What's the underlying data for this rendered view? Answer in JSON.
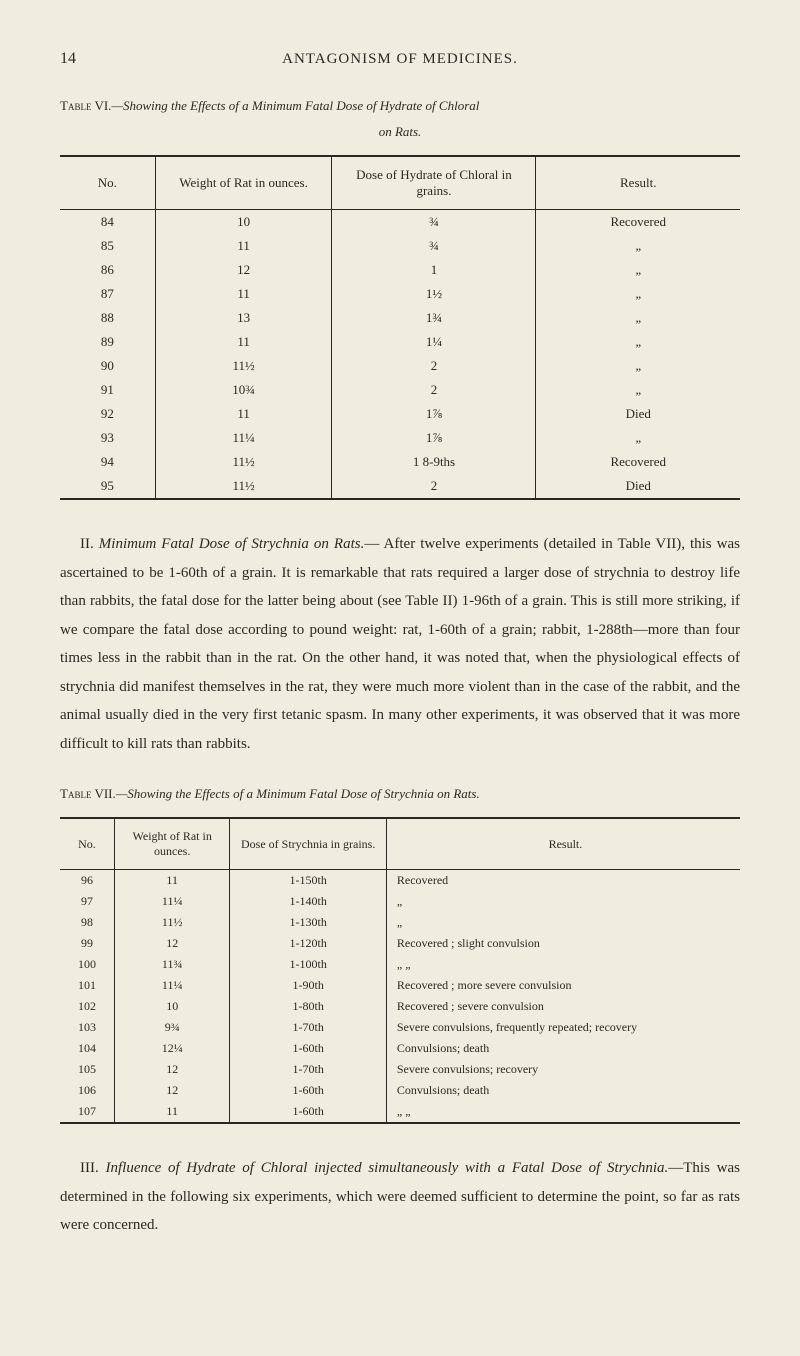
{
  "page_number": "14",
  "page_title": "ANTAGONISM OF MEDICINES.",
  "table6": {
    "caption_prefix": "Table VI.",
    "caption_text": "—Showing the Effects of a Minimum Fatal Dose of Hydrate of Chloral",
    "caption_line2": "on Rats.",
    "columns": [
      "No.",
      "Weight of Rat in ounces.",
      "Dose of Hydrate of Chloral in grains.",
      "Result."
    ],
    "rows": [
      [
        "84",
        "10",
        "¾",
        "Recovered"
      ],
      [
        "85",
        "11",
        "¾",
        "„"
      ],
      [
        "86",
        "12",
        "1",
        "„"
      ],
      [
        "87",
        "11",
        "1½",
        "„"
      ],
      [
        "88",
        "13",
        "1¾",
        "„"
      ],
      [
        "89",
        "11",
        "1¼",
        "„"
      ],
      [
        "90",
        "11½",
        "2",
        "„"
      ],
      [
        "91",
        "10¾",
        "2",
        "„"
      ],
      [
        "92",
        "11",
        "1⅞",
        "Died"
      ],
      [
        "93",
        "11¼",
        "1⅞",
        "„"
      ],
      [
        "94",
        "11½",
        "1 8-9ths",
        "Recovered"
      ],
      [
        "95",
        "11½",
        "2",
        "Died"
      ]
    ]
  },
  "para1": {
    "roman": "II.",
    "italic": "Minimum Fatal Dose of Strychnia on Rats.",
    "text": "— After twelve experiments (detailed in Table VII), this was ascertained to be 1-60th of a grain. It is remarkable that rats required a larger dose of strychnia to destroy life than rabbits, the fatal dose for the latter being about (see Table II) 1-96th of a grain. This is still more striking, if we compare the fatal dose according to pound weight: rat, 1-60th of a grain; rabbit, 1-288th—more than four times less in the rabbit than in the rat. On the other hand, it was noted that, when the physiological effects of strychnia did manifest themselves in the rat, they were much more violent than in the case of the rabbit, and the animal usually died in the very first tetanic spasm. In many other experiments, it was observed that it was more difficult to kill rats than rabbits."
  },
  "table7": {
    "caption_prefix": "Table VII.",
    "caption_text": "—Showing the Effects of a Minimum Fatal Dose of Strychnia on Rats.",
    "columns": [
      "No.",
      "Weight of Rat in ounces.",
      "Dose of Strychnia in grains.",
      "Result."
    ],
    "rows": [
      [
        "96",
        "11",
        "1-150th",
        "Recovered"
      ],
      [
        "97",
        "11¼",
        "1-140th",
        "„"
      ],
      [
        "98",
        "11½",
        "1-130th",
        "„"
      ],
      [
        "99",
        "12",
        "1-120th",
        "Recovered ; slight convulsion"
      ],
      [
        "100",
        "11¾",
        "1-100th",
        "„              „"
      ],
      [
        "101",
        "11¼",
        "1-90th",
        "Recovered ; more severe convulsion"
      ],
      [
        "102",
        "10",
        "1-80th",
        "Recovered ; severe convulsion"
      ],
      [
        "103",
        "9¾",
        "1-70th",
        "Severe convulsions, frequently repeated; recovery"
      ],
      [
        "104",
        "12¼",
        "1-60th",
        "Convulsions; death"
      ],
      [
        "105",
        "12",
        "1-70th",
        "Severe convulsions; recovery"
      ],
      [
        "106",
        "12",
        "1-60th",
        "Convulsions; death"
      ],
      [
        "107",
        "11",
        "1-60th",
        "„              „"
      ]
    ]
  },
  "para2": {
    "roman": "III.",
    "italic": "Influence of Hydrate of Chloral injected simultaneously with a Fatal Dose of Strychnia.",
    "text": "—This was determined in the following six experiments, which were deemed sufficient to determine the point, so far as rats were concerned."
  }
}
